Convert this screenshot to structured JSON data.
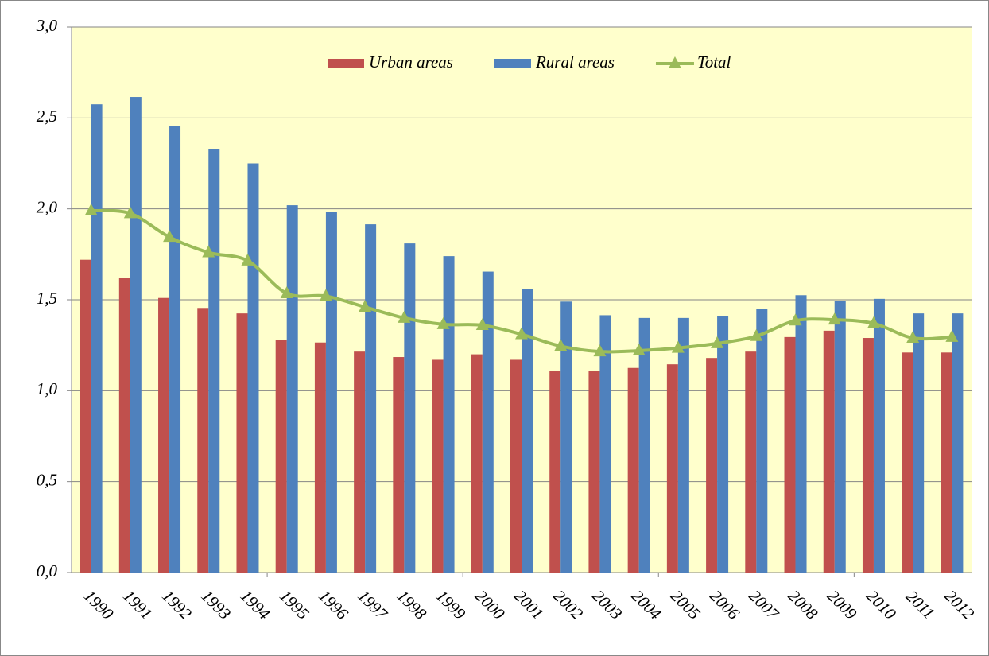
{
  "chart_data": {
    "type": "bar_line",
    "categories": [
      "1990",
      "1991",
      "1992",
      "1993",
      "1994",
      "1995",
      "1996",
      "1997",
      "1998",
      "1999",
      "2000",
      "2001",
      "2002",
      "2003",
      "2004",
      "2005",
      "2006",
      "2007",
      "2008",
      "2009",
      "2010",
      "2011",
      "2012"
    ],
    "series": [
      {
        "name": "Urban areas",
        "color": "#c0504d",
        "type": "bar",
        "values": [
          1.72,
          1.62,
          1.51,
          1.455,
          1.425,
          1.28,
          1.265,
          1.215,
          1.185,
          1.17,
          1.2,
          1.17,
          1.11,
          1.11,
          1.125,
          1.145,
          1.18,
          1.215,
          1.295,
          1.33,
          1.29,
          1.21,
          1.21
        ]
      },
      {
        "name": "Rural areas",
        "color": "#4f81bd",
        "type": "bar",
        "values": [
          2.575,
          2.615,
          2.455,
          2.33,
          2.25,
          2.02,
          1.985,
          1.915,
          1.81,
          1.74,
          1.655,
          1.56,
          1.49,
          1.415,
          1.4,
          1.4,
          1.41,
          1.45,
          1.525,
          1.495,
          1.505,
          1.425,
          1.425
        ]
      },
      {
        "name": "Total",
        "color": "#9bbb59",
        "type": "line",
        "values": [
          1.99,
          1.975,
          1.845,
          1.76,
          1.715,
          1.535,
          1.52,
          1.46,
          1.4,
          1.365,
          1.36,
          1.31,
          1.245,
          1.215,
          1.22,
          1.235,
          1.26,
          1.3,
          1.385,
          1.39,
          1.37,
          1.29,
          1.295
        ]
      }
    ],
    "ylim": [
      0,
      3
    ],
    "yticks": [
      {
        "value": 0,
        "label": "0,0"
      },
      {
        "value": 0.5,
        "label": "0,5"
      },
      {
        "value": 1,
        "label": "1,0"
      },
      {
        "value": 1.5,
        "label": "1,5"
      },
      {
        "value": 2,
        "label": "2,0"
      },
      {
        "value": 2.5,
        "label": "2,5"
      },
      {
        "value": 3,
        "label": "3,0"
      }
    ],
    "grid": true,
    "legend": "top",
    "background": "#ffffcc"
  }
}
